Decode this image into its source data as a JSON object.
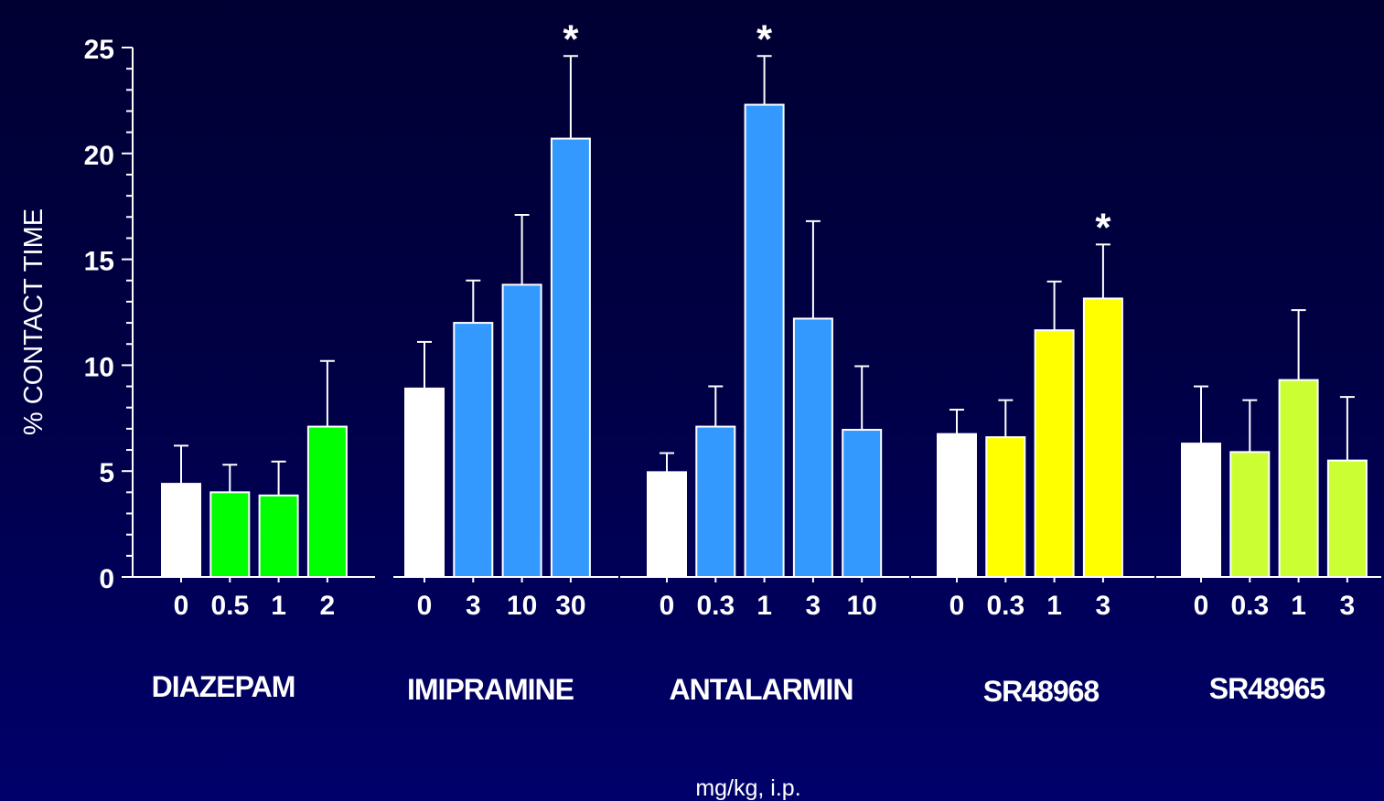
{
  "chart_data": {
    "type": "bar",
    "ylabel": "% CONTACT TIME",
    "xlabel": "mg/kg, i.p.",
    "ylim": [
      0,
      25
    ],
    "yticks": [
      0,
      5,
      10,
      15,
      20,
      25
    ],
    "grid": false,
    "groups": [
      {
        "name": "DIAZEPAM",
        "color": "#00ff00",
        "bars": [
          {
            "dose": "0",
            "value": 4.4,
            "error": 1.8,
            "color": "#ffffff",
            "sig": false
          },
          {
            "dose": "0.5",
            "value": 4.0,
            "error": 1.3,
            "color": "#00ff00",
            "sig": false
          },
          {
            "dose": "1",
            "value": 3.85,
            "error": 1.6,
            "color": "#00ff00",
            "sig": false
          },
          {
            "dose": "2",
            "value": 7.1,
            "error": 3.1,
            "color": "#00ff00",
            "sig": false
          }
        ]
      },
      {
        "name": "IMIPRAMINE",
        "color": "#3399ff",
        "bars": [
          {
            "dose": "0",
            "value": 8.9,
            "error": 2.2,
            "color": "#ffffff",
            "sig": false
          },
          {
            "dose": "3",
            "value": 12.0,
            "error": 2.0,
            "color": "#3399ff",
            "sig": false
          },
          {
            "dose": "10",
            "value": 13.8,
            "error": 3.3,
            "color": "#3399ff",
            "sig": false
          },
          {
            "dose": "30",
            "value": 20.7,
            "error": 3.9,
            "color": "#3399ff",
            "sig": true
          }
        ]
      },
      {
        "name": "ANTALARMIN",
        "color": "#3399ff",
        "bars": [
          {
            "dose": "0",
            "value": 4.95,
            "error": 0.9,
            "color": "#ffffff",
            "sig": false
          },
          {
            "dose": "0.3",
            "value": 7.1,
            "error": 1.9,
            "color": "#3399ff",
            "sig": false
          },
          {
            "dose": "1",
            "value": 22.3,
            "error": 2.3,
            "color": "#3399ff",
            "sig": true
          },
          {
            "dose": "3",
            "value": 12.2,
            "error": 4.6,
            "color": "#3399ff",
            "sig": false
          },
          {
            "dose": "10",
            "value": 6.95,
            "error": 3.0,
            "color": "#3399ff",
            "sig": false
          }
        ]
      },
      {
        "name": "SR48968",
        "color": "#ffff00",
        "bars": [
          {
            "dose": "0",
            "value": 6.75,
            "error": 1.15,
            "color": "#ffffff",
            "sig": false
          },
          {
            "dose": "0.3",
            "value": 6.6,
            "error": 1.75,
            "color": "#ffff00",
            "sig": false
          },
          {
            "dose": "1",
            "value": 11.65,
            "error": 2.3,
            "color": "#ffff00",
            "sig": false
          },
          {
            "dose": "3",
            "value": 13.15,
            "error": 2.55,
            "color": "#ffff00",
            "sig": true
          }
        ]
      },
      {
        "name": "SR48965",
        "color": "#ccff33",
        "bars": [
          {
            "dose": "0",
            "value": 6.3,
            "error": 2.7,
            "color": "#ffffff",
            "sig": false
          },
          {
            "dose": "0.3",
            "value": 5.9,
            "error": 2.45,
            "color": "#ccff33",
            "sig": false
          },
          {
            "dose": "1",
            "value": 9.3,
            "error": 3.3,
            "color": "#ccff33",
            "sig": false
          },
          {
            "dose": "3",
            "value": 5.5,
            "error": 3.0,
            "color": "#ccff33",
            "sig": false
          }
        ]
      }
    ],
    "significance_marker": "*"
  },
  "colors": {
    "background_top": "#000033",
    "background_bottom": "#00006b",
    "axis": "#ffffff",
    "text": "#ffffff"
  }
}
